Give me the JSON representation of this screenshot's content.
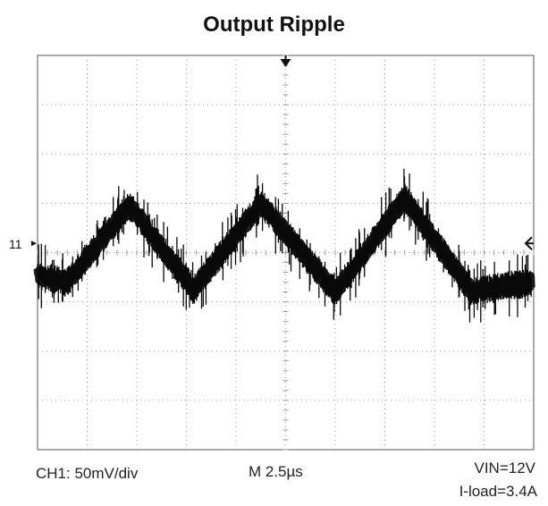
{
  "title": "Output Ripple",
  "channel_marker": "1",
  "footer": {
    "channel_scale": "CH1: 50mV/div",
    "timebase": "M  2.5µs",
    "vin": "VIN=12V",
    "iload": "I-load=3.4A"
  },
  "colors": {
    "grid": "#9a9a9a",
    "trace": "#0a0a0a",
    "frame": "#555555"
  },
  "chart_data": {
    "type": "line",
    "title": "Output Ripple",
    "grid": true,
    "divisions": {
      "x": 10,
      "y": 8
    },
    "volts_per_div": 0.05,
    "seconds_per_div": 2.5e-06,
    "x_unit": "div",
    "y_unit": "div relative to channel 1 marker",
    "series": [
      {
        "x": [
          0.0,
          0.6,
          1.85,
          3.15,
          4.5,
          6.0,
          7.4,
          8.75,
          9.95
        ],
        "y": [
          -0.6,
          -0.75,
          0.8,
          -0.9,
          0.85,
          -0.95,
          0.95,
          -0.95,
          -0.75
        ],
        "noise_band": 0.45
      }
    ]
  }
}
